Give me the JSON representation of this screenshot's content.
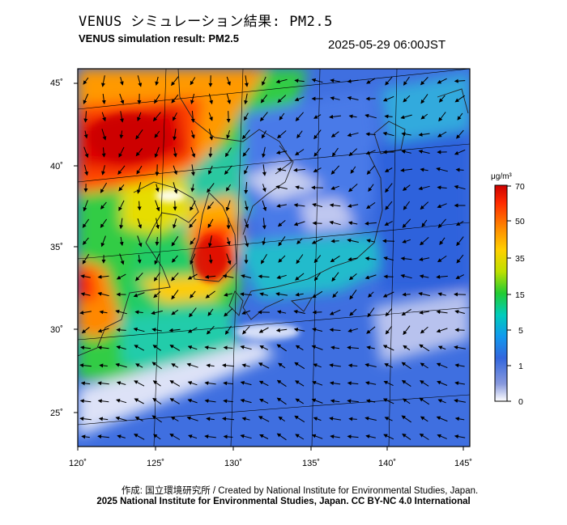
{
  "header": {
    "title_jp": "VENUS シミュレーション結果: PM2.5",
    "title_en": "VENUS simulation result: PM2.5",
    "timestamp": "2025-05-29 06:00JST"
  },
  "map": {
    "lat_labels": [
      "45˚",
      "40˚",
      "35˚",
      "30˚",
      "25˚"
    ],
    "lon_labels": [
      "120˚",
      "125˚",
      "130˚",
      "135˚",
      "140˚",
      "145˚"
    ]
  },
  "legend": {
    "unit": "μg/m³",
    "ticks": [
      "70",
      "50",
      "35",
      "15",
      "5",
      "1",
      "0"
    ],
    "colors": [
      "#cc0000",
      "#ff3300",
      "#ff9900",
      "#ffdd00",
      "#99dd00",
      "#00cc33",
      "#00cccc",
      "#0099ff",
      "#3366dd",
      "#7788dd",
      "#ffffff"
    ]
  },
  "footer": {
    "credit_line1": "作成: 国立環境研究所 / Created by National Institute for Environmental Studies, Japan.",
    "credit_line2": "2025 National Institute for Environmental Studies, Japan. CC BY-NC 4.0 International"
  }
}
